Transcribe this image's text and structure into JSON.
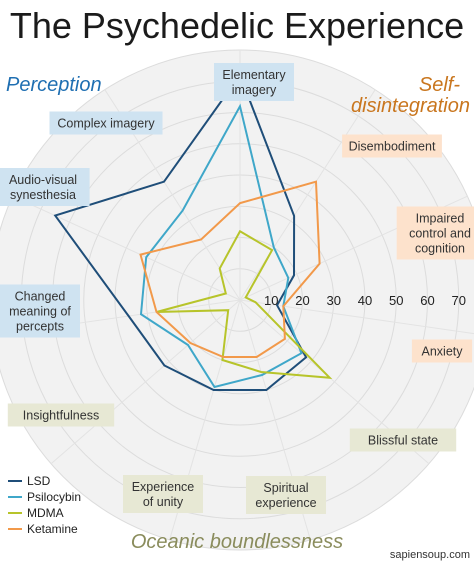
{
  "title": "The Psychedelic Experience",
  "groups": {
    "perception": "Perception",
    "self_disintegration_1": "Self-",
    "self_disintegration_2": "disintegration",
    "oceanic": "Oceanic boundlessness"
  },
  "colors": {
    "LSD": "#1f4e79",
    "Psilocybin": "#3fa7c9",
    "MDMA": "#b7c42a",
    "Ketamine": "#f2994a",
    "perception_box": "#cfe3f1",
    "self_box": "#fde2cc",
    "oceanic_box": "#e7e8d4",
    "perception_text": "#1f6fb2",
    "self_text": "#c9761e",
    "oceanic_text": "#8a8c5c",
    "grid_fill": "#f2f2f2",
    "grid_stroke": "#dcdcdc"
  },
  "footer": "sapiensoup.com",
  "chart_data": {
    "type": "radar",
    "title": "The Psychedelic Experience",
    "axes": [
      {
        "label": "Elementary\nimagery",
        "group": "perception"
      },
      {
        "label": "Disembodiment",
        "group": "self"
      },
      {
        "label": "Impaired\ncontrol and\ncognition",
        "group": "self"
      },
      {
        "label": "Anxiety",
        "group": "self"
      },
      {
        "label": "Blissful state",
        "group": "oceanic"
      },
      {
        "label": "Spiritual\nexperience",
        "group": "oceanic"
      },
      {
        "label": "Experience\nof unity",
        "group": "oceanic"
      },
      {
        "label": "Insightfulness",
        "group": "oceanic"
      },
      {
        "label": "Changed\nmeaning of\npercepts",
        "group": "perception"
      },
      {
        "label": "Audio-visual\nsynesthesia",
        "group": "perception"
      },
      {
        "label": "Complex imagery",
        "group": "perception"
      }
    ],
    "ticks": [
      10,
      20,
      30,
      40,
      50,
      60,
      70
    ],
    "rmax": 80,
    "series": [
      {
        "name": "LSD",
        "values": [
          72,
          32,
          19,
          12,
          28,
          30,
          30,
          32,
          36,
          65,
          45
        ]
      },
      {
        "name": "Psilocybin",
        "values": [
          62,
          20,
          17,
          14,
          26,
          25,
          29,
          22,
          32,
          33,
          34
        ]
      },
      {
        "name": "MDMA",
        "values": [
          22,
          19,
          2,
          5,
          38,
          24,
          20,
          5,
          27,
          5,
          12
        ]
      },
      {
        "name": "Ketamine",
        "values": [
          31,
          45,
          28,
          14,
          19,
          19,
          19,
          21,
          27,
          35,
          23
        ]
      }
    ],
    "legend_position": "bottom-left"
  }
}
